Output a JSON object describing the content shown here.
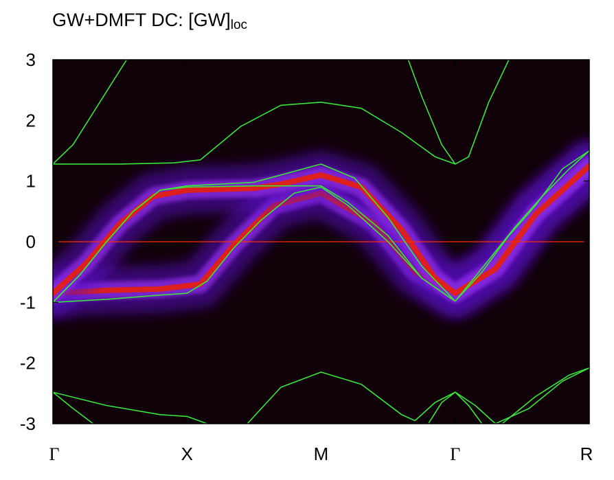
{
  "chart_data": {
    "type": "heatmap",
    "title_main": "GW+DMFT DC: [GW]",
    "title_sub": "loc",
    "xlabel": "",
    "ylabel": "",
    "ylim": [
      -3,
      3
    ],
    "xlim": [
      0,
      4
    ],
    "y_ticks": [
      -3,
      -2,
      -1,
      0,
      1,
      2,
      3
    ],
    "k_points": [
      {
        "label": "Γ",
        "x": 0
      },
      {
        "label": "X",
        "x": 1
      },
      {
        "label": "M",
        "x": 2
      },
      {
        "label": "Γ",
        "x": 3
      },
      {
        "label": "R",
        "x": 4
      }
    ],
    "fermi_level": 0,
    "colors": {
      "background": "#100008",
      "spectral_low": "#5a10c8",
      "spectral_mid": "#8a2be2",
      "spectral_high": "#e8200a",
      "dispersion": "#39e639",
      "fermi": "#ff2a00"
    },
    "spectral_bands": [
      {
        "name": "band-1",
        "points": [
          [
            0,
            -0.85
          ],
          [
            0.4,
            -0.8
          ],
          [
            0.8,
            -0.78
          ],
          [
            1.1,
            -0.7
          ],
          [
            1.35,
            -0.05
          ],
          [
            1.65,
            0.6
          ],
          [
            2.0,
            0.8
          ],
          [
            2.4,
            0.3
          ],
          [
            2.7,
            -0.5
          ],
          [
            3.0,
            -0.85
          ],
          [
            3.3,
            -0.4
          ],
          [
            3.6,
            0.5
          ],
          [
            4.0,
            1.25
          ]
        ]
      },
      {
        "name": "band-2",
        "points": [
          [
            0,
            -0.85
          ],
          [
            0.25,
            -0.35
          ],
          [
            0.5,
            0.3
          ],
          [
            0.75,
            0.75
          ],
          [
            1.0,
            0.85
          ],
          [
            1.5,
            0.88
          ],
          [
            1.7,
            0.95
          ],
          [
            2.0,
            1.1
          ],
          [
            2.3,
            0.9
          ],
          [
            2.6,
            0.2
          ],
          [
            2.85,
            -0.6
          ],
          [
            3.0,
            -0.85
          ],
          [
            3.3,
            -0.45
          ],
          [
            3.6,
            0.45
          ],
          [
            4.0,
            1.25
          ]
        ]
      }
    ],
    "dispersion_lines": [
      {
        "points": [
          [
            0,
            1.28
          ],
          [
            0.5,
            1.28
          ],
          [
            0.9,
            1.3
          ],
          [
            1.1,
            1.35
          ],
          [
            1.4,
            1.9
          ],
          [
            1.7,
            2.25
          ],
          [
            2.0,
            2.3
          ],
          [
            2.3,
            2.2
          ],
          [
            2.6,
            1.8
          ],
          [
            2.85,
            1.4
          ],
          [
            3.0,
            1.28
          ]
        ]
      },
      {
        "points": [
          [
            0,
            1.28
          ],
          [
            0.15,
            1.6
          ],
          [
            0.35,
            2.3
          ],
          [
            0.55,
            3.0
          ]
        ]
      },
      {
        "points": [
          [
            2.65,
            3.0
          ],
          [
            2.75,
            2.4
          ],
          [
            2.9,
            1.6
          ],
          [
            3.0,
            1.28
          ],
          [
            3.1,
            1.4
          ],
          [
            3.25,
            2.3
          ],
          [
            3.4,
            3.0
          ]
        ]
      },
      {
        "points": [
          [
            0,
            -1.0
          ],
          [
            0.4,
            -0.95
          ],
          [
            0.8,
            -0.88
          ],
          [
            1.0,
            -0.85
          ],
          [
            1.15,
            -0.65
          ],
          [
            1.35,
            -0.1
          ],
          [
            1.55,
            0.35
          ],
          [
            1.8,
            0.8
          ],
          [
            2.0,
            0.9
          ],
          [
            2.2,
            0.6
          ],
          [
            2.5,
            0.0
          ],
          [
            2.75,
            -0.6
          ],
          [
            3.0,
            -0.98
          ]
        ]
      },
      {
        "points": [
          [
            0,
            -1.0
          ],
          [
            0.2,
            -0.55
          ],
          [
            0.4,
            0.0
          ],
          [
            0.6,
            0.5
          ],
          [
            0.8,
            0.85
          ],
          [
            1.0,
            0.9
          ],
          [
            1.5,
            0.92
          ],
          [
            2.0,
            0.92
          ],
          [
            2.2,
            0.65
          ],
          [
            2.5,
            0.1
          ],
          [
            2.75,
            -0.6
          ],
          [
            3.0,
            -0.98
          ]
        ]
      },
      {
        "points": [
          [
            0,
            -1.0
          ],
          [
            0.2,
            -0.55
          ],
          [
            0.4,
            0.0
          ],
          [
            0.6,
            0.5
          ],
          [
            0.8,
            0.85
          ],
          [
            1.0,
            0.92
          ],
          [
            1.5,
            0.98
          ],
          [
            2.0,
            1.28
          ],
          [
            2.25,
            1.05
          ],
          [
            2.5,
            0.4
          ],
          [
            2.75,
            -0.4
          ],
          [
            3.0,
            -0.98
          ]
        ]
      },
      {
        "points": [
          [
            3.0,
            -0.98
          ],
          [
            3.2,
            -0.5
          ],
          [
            3.4,
            0.1
          ],
          [
            3.6,
            0.6
          ],
          [
            3.8,
            1.2
          ],
          [
            4.0,
            1.5
          ]
        ]
      },
      {
        "points": [
          [
            3.0,
            -0.98
          ],
          [
            3.25,
            -0.3
          ],
          [
            3.45,
            0.25
          ],
          [
            3.65,
            0.75
          ],
          [
            3.85,
            1.2
          ],
          [
            4.0,
            1.5
          ]
        ]
      },
      {
        "points": [
          [
            0,
            -2.48
          ],
          [
            0.4,
            -2.7
          ],
          [
            0.8,
            -2.85
          ],
          [
            1.0,
            -2.88
          ],
          [
            1.15,
            -3.0
          ]
        ]
      },
      {
        "points": [
          [
            0,
            -2.48
          ],
          [
            0.15,
            -2.75
          ],
          [
            0.3,
            -3.0
          ]
        ]
      },
      {
        "points": [
          [
            1.45,
            -3.0
          ],
          [
            1.7,
            -2.4
          ],
          [
            2.0,
            -2.15
          ],
          [
            2.3,
            -2.35
          ],
          [
            2.6,
            -2.85
          ],
          [
            2.7,
            -2.95
          ]
        ]
      },
      {
        "points": [
          [
            2.7,
            -2.95
          ],
          [
            2.85,
            -2.65
          ],
          [
            3.0,
            -2.48
          ],
          [
            3.15,
            -2.7
          ],
          [
            3.3,
            -3.0
          ]
        ]
      },
      {
        "points": [
          [
            2.8,
            -3.0
          ],
          [
            2.9,
            -2.65
          ],
          [
            3.0,
            -2.48
          ],
          [
            3.1,
            -2.7
          ],
          [
            3.2,
            -3.0
          ]
        ]
      },
      {
        "points": [
          [
            3.35,
            -3.0
          ],
          [
            3.6,
            -2.55
          ],
          [
            3.85,
            -2.2
          ],
          [
            4.0,
            -2.08
          ]
        ]
      },
      {
        "points": [
          [
            3.3,
            -3.0
          ],
          [
            3.55,
            -2.75
          ],
          [
            3.8,
            -2.3
          ],
          [
            4.0,
            -2.08
          ]
        ]
      }
    ]
  }
}
